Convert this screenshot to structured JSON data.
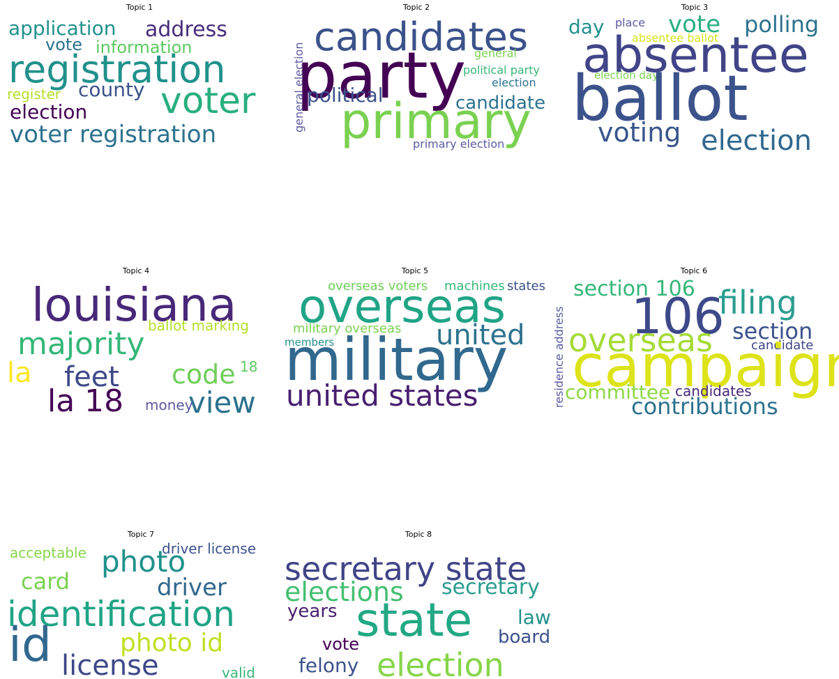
{
  "topics": [
    {
      "title": "Topic 1",
      "words": [
        {
          "text": "application",
          "color": "#21918c"
        },
        {
          "text": "address",
          "color": "#472d7b"
        },
        {
          "text": "vote",
          "color": "#2c728e"
        },
        {
          "text": "information",
          "color": "#5ec962"
        },
        {
          "text": "registration",
          "color": "#21918c"
        },
        {
          "text": "county",
          "color": "#3b528b"
        },
        {
          "text": "register",
          "color": "#b5de2b"
        },
        {
          "text": "voter",
          "color": "#29af7f"
        },
        {
          "text": "election",
          "color": "#440154"
        },
        {
          "text": "voter registration",
          "color": "#2c728e"
        }
      ]
    },
    {
      "title": "Topic 2",
      "words": [
        {
          "text": "candidates",
          "color": "#3b528b"
        },
        {
          "text": "party",
          "color": "#440154"
        },
        {
          "text": "general election",
          "color": "#5c5aa0"
        },
        {
          "text": "general",
          "color": "#7ad151"
        },
        {
          "text": "political party",
          "color": "#35b779"
        },
        {
          "text": "election",
          "color": "#2c728e"
        },
        {
          "text": "political",
          "color": "#3b528b"
        },
        {
          "text": "candidate",
          "color": "#2c728e"
        },
        {
          "text": "primary",
          "color": "#7ad151"
        },
        {
          "text": "primary election",
          "color": "#5c5aa0"
        }
      ]
    },
    {
      "title": "Topic 3",
      "words": [
        {
          "text": "day",
          "color": "#21918c"
        },
        {
          "text": "place",
          "color": "#5c5aa0"
        },
        {
          "text": "vote",
          "color": "#29af7f"
        },
        {
          "text": "polling",
          "color": "#2c728e"
        },
        {
          "text": "absentee ballot",
          "color": "#d5e21a"
        },
        {
          "text": "absentee",
          "color": "#414487"
        },
        {
          "text": "election day",
          "color": "#7ad151"
        },
        {
          "text": "ballot",
          "color": "#3b528b"
        },
        {
          "text": "voting",
          "color": "#39568c"
        },
        {
          "text": "election",
          "color": "#31688e"
        }
      ]
    },
    {
      "title": "Topic 4",
      "words": [
        {
          "text": "louisiana",
          "color": "#482878"
        },
        {
          "text": "ballot marking",
          "color": "#b5de2b"
        },
        {
          "text": "majority",
          "color": "#35b779"
        },
        {
          "text": "la",
          "color": "#fde725"
        },
        {
          "text": "feet",
          "color": "#3e4989"
        },
        {
          "text": "code",
          "color": "#6ece58"
        },
        {
          "text": "18",
          "color": "#5ec962"
        },
        {
          "text": "la 18",
          "color": "#440154"
        },
        {
          "text": "money",
          "color": "#5c5aa0"
        },
        {
          "text": "view",
          "color": "#2c728e"
        }
      ]
    },
    {
      "title": "Topic 5",
      "words": [
        {
          "text": "overseas voters",
          "color": "#6ece58"
        },
        {
          "text": "machines",
          "color": "#35b779"
        },
        {
          "text": "states",
          "color": "#3b528b"
        },
        {
          "text": "overseas",
          "color": "#20a486"
        },
        {
          "text": "residence address",
          "color": "#5c5aa0"
        },
        {
          "text": "military overseas",
          "color": "#7ad151"
        },
        {
          "text": "united",
          "color": "#2c728e"
        },
        {
          "text": "members",
          "color": "#21918c"
        },
        {
          "text": "military",
          "color": "#31688e"
        },
        {
          "text": "united states",
          "color": "#481f70"
        }
      ]
    },
    {
      "title": "Topic 6",
      "words": [
        {
          "text": "section 106",
          "color": "#35b779"
        },
        {
          "text": "106",
          "color": "#3e4989"
        },
        {
          "text": "filing",
          "color": "#2a9d8f"
        },
        {
          "text": "section",
          "color": "#3b528b"
        },
        {
          "text": "overseas",
          "color": "#a5db36"
        },
        {
          "text": "candidate",
          "color": "#414487"
        },
        {
          "text": "campaign",
          "color": "#dde318"
        },
        {
          "text": "committee",
          "color": "#8fd744"
        },
        {
          "text": "candidates",
          "color": "#482878"
        },
        {
          "text": "contributions",
          "color": "#2c728e"
        }
      ]
    },
    {
      "title": "Topic 7",
      "words": [
        {
          "text": "acceptable",
          "color": "#86d549"
        },
        {
          "text": "driver license",
          "color": "#3b528b"
        },
        {
          "text": "photo",
          "color": "#21918c"
        },
        {
          "text": "card",
          "color": "#7ad151"
        },
        {
          "text": "driver",
          "color": "#31688e"
        },
        {
          "text": "identification",
          "color": "#20a486"
        },
        {
          "text": "id",
          "color": "#31688e"
        },
        {
          "text": "photo id",
          "color": "#c2df23"
        },
        {
          "text": "license",
          "color": "#3e4989"
        },
        {
          "text": "valid",
          "color": "#35b779"
        }
      ]
    },
    {
      "title": "Topic 8",
      "words": [
        {
          "text": "secretary state",
          "color": "#414487"
        },
        {
          "text": "elections",
          "color": "#44bf70"
        },
        {
          "text": "secretary",
          "color": "#2a9d8f"
        },
        {
          "text": "years",
          "color": "#481f70"
        },
        {
          "text": "state",
          "color": "#22a884"
        },
        {
          "text": "law",
          "color": "#21918c"
        },
        {
          "text": "board",
          "color": "#3b528b"
        },
        {
          "text": "vote",
          "color": "#440154"
        },
        {
          "text": "felony",
          "color": "#3b528b"
        },
        {
          "text": "election",
          "color": "#86d549"
        }
      ]
    }
  ]
}
